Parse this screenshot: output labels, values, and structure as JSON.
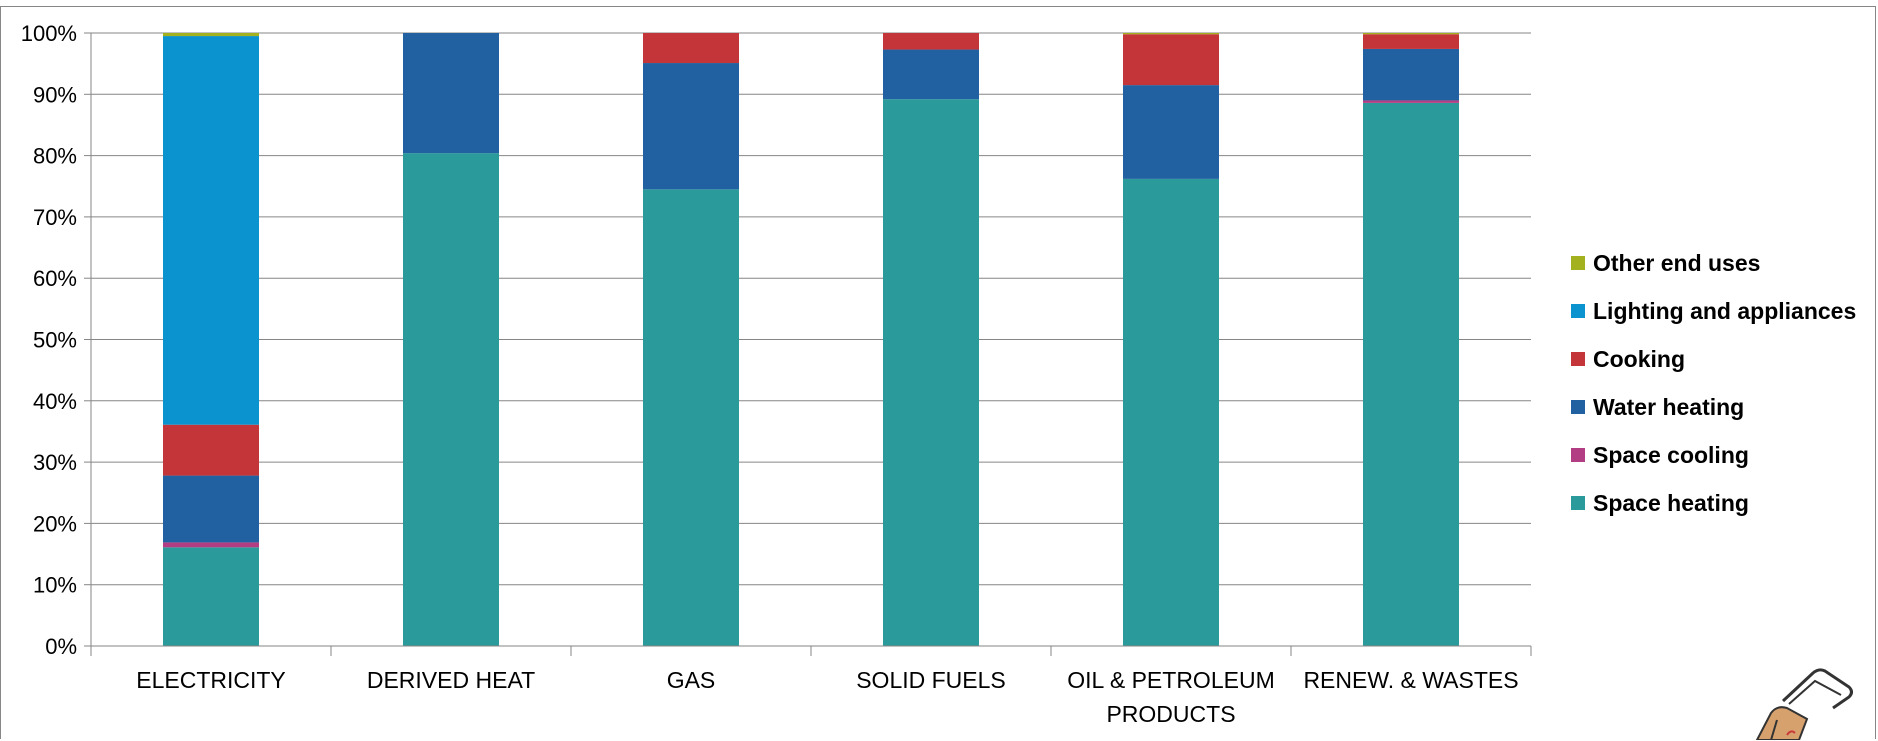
{
  "chart_data": {
    "type": "bar",
    "stacked": true,
    "percent_stacked": true,
    "categories": [
      [
        "ELECTRICITY"
      ],
      [
        "DERIVED HEAT"
      ],
      [
        "GAS"
      ],
      [
        "SOLID FUELS"
      ],
      [
        "OIL & PETROLEUM",
        "PRODUCTS"
      ],
      [
        "RENEW. & WASTES"
      ]
    ],
    "series": [
      {
        "name": "Space heating",
        "color": "#2A9A9B",
        "values": [
          16.1,
          80.4,
          74.5,
          89.2,
          76.2,
          88.6
        ]
      },
      {
        "name": "Space cooling",
        "color": "#B33D82",
        "values": [
          0.8,
          0.0,
          0.0,
          0.0,
          0.0,
          0.4
        ]
      },
      {
        "name": "Water heating",
        "color": "#2160A1",
        "values": [
          10.9,
          19.6,
          20.6,
          8.1,
          15.3,
          8.4
        ]
      },
      {
        "name": "Cooking",
        "color": "#C33539",
        "values": [
          8.3,
          0.0,
          4.9,
          2.7,
          8.3,
          2.4
        ]
      },
      {
        "name": "Lighting and appliances",
        "color": "#0A93CE",
        "values": [
          63.4,
          0.0,
          0.0,
          0.0,
          0.0,
          0.0
        ]
      },
      {
        "name": "Other end uses",
        "color": "#A4B11E",
        "values": [
          0.5,
          0.0,
          0.0,
          0.0,
          0.2,
          0.2
        ]
      }
    ],
    "ylim": [
      0,
      100
    ],
    "yticks": [
      "0%",
      "10%",
      "20%",
      "30%",
      "40%",
      "50%",
      "60%",
      "70%",
      "80%",
      "90%",
      "100%"
    ],
    "grid": true,
    "legend_position": "right",
    "legend_order": [
      "Other end uses",
      "Lighting and appliances",
      "Cooking",
      "Water heating",
      "Space cooling",
      "Space heating"
    ],
    "xlabel": "",
    "ylabel": ""
  }
}
